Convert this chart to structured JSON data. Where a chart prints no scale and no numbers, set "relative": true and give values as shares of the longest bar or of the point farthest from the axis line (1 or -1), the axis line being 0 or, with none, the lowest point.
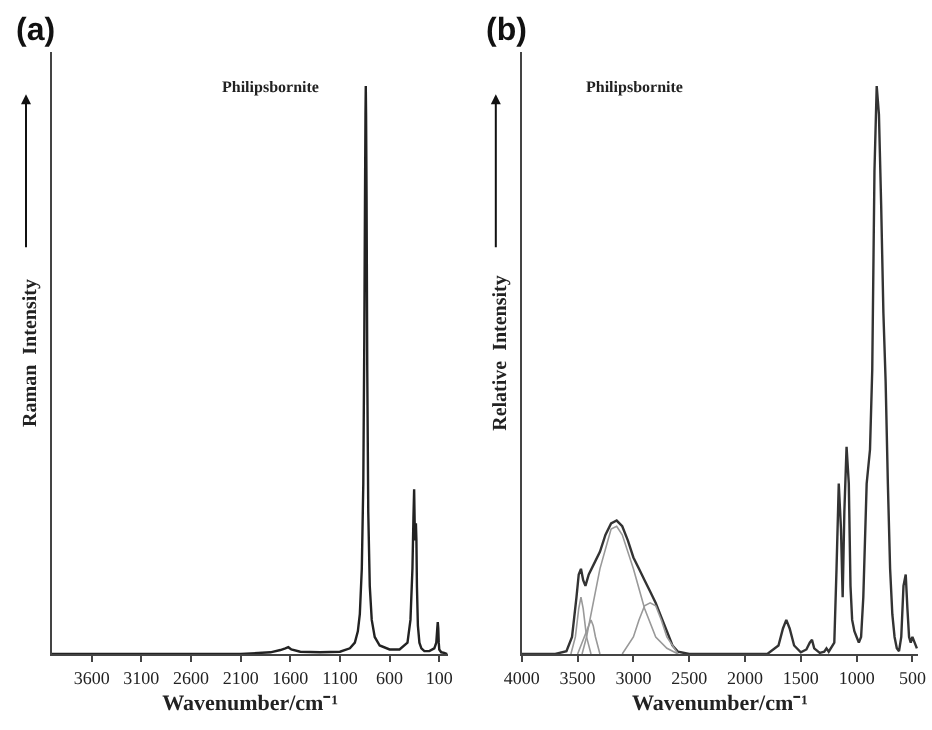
{
  "chart_data": [
    {
      "type": "line",
      "relative": true,
      "title": "Philipsbornite",
      "annotations": [
        "(a)"
      ],
      "xlabel": "Wavenumber/cm⁻¹",
      "ylabel": "Raman  Intensity",
      "xlim": [
        4000,
        10
      ],
      "xticks": [
        3600,
        3100,
        2600,
        2100,
        1600,
        1100,
        600,
        100
      ],
      "marker": "none",
      "line_style": "solid",
      "series": [
        {
          "color": "#222222",
          "x": [
            4000,
            3600,
            3000,
            2500,
            2100,
            1800,
            1700,
            1650,
            1620,
            1590,
            1500,
            1300,
            1100,
            1000,
            950,
            920,
            900,
            880,
            865,
            855,
            848,
            843,
            840,
            837,
            832,
            825,
            815,
            800,
            780,
            750,
            700,
            600,
            500,
            420,
            390,
            370,
            360,
            353,
            345,
            335,
            330,
            325,
            315,
            300,
            280,
            250,
            200,
            150,
            130,
            120,
            115,
            110,
            105,
            100,
            80,
            50,
            20
          ],
          "values": [
            0,
            0,
            0,
            0,
            0,
            0.003,
            0.007,
            0.01,
            0.012,
            0.008,
            0.004,
            0.003,
            0.004,
            0.01,
            0.02,
            0.04,
            0.07,
            0.15,
            0.3,
            0.55,
            0.8,
            0.95,
            1.0,
            0.95,
            0.8,
            0.5,
            0.25,
            0.12,
            0.06,
            0.03,
            0.015,
            0.008,
            0.008,
            0.02,
            0.06,
            0.15,
            0.24,
            0.29,
            0.2,
            0.23,
            0.2,
            0.12,
            0.05,
            0.02,
            0.01,
            0.005,
            0.005,
            0.01,
            0.02,
            0.045,
            0.056,
            0.045,
            0.02,
            0.008,
            0.003,
            0.002,
            0
          ]
        }
      ]
    },
    {
      "type": "line",
      "relative": true,
      "title": "Philipsbornite",
      "annotations": [
        "(b)"
      ],
      "xlabel": "Wavenumber/cm⁻¹",
      "ylabel": "Relative  Intensity",
      "xlim": [
        4000,
        450
      ],
      "xticks": [
        4000,
        3500,
        3000,
        2500,
        2000,
        1500,
        1000,
        500
      ],
      "marker": "none",
      "line_style": "solid",
      "series": [
        {
          "color": "#333333",
          "x": [
            4000,
            3700,
            3600,
            3550,
            3510,
            3490,
            3470,
            3450,
            3430,
            3400,
            3350,
            3300,
            3250,
            3200,
            3150,
            3100,
            3050,
            3000,
            2950,
            2900,
            2850,
            2800,
            2750,
            2700,
            2650,
            2600,
            2500,
            2200,
            1800,
            1700,
            1660,
            1630,
            1600,
            1560,
            1500,
            1450,
            1420,
            1400,
            1380,
            1330,
            1290,
            1270,
            1250,
            1200,
            1180,
            1160,
            1140,
            1125,
            1110,
            1090,
            1070,
            1055,
            1040,
            1020,
            1000,
            980,
            960,
            940,
            910,
            880,
            860,
            840,
            820,
            800,
            780,
            760,
            740,
            720,
            700,
            680,
            660,
            640,
            620,
            600,
            580,
            560,
            545,
            530,
            515,
            500,
            480,
            460
          ],
          "values": [
            0,
            0,
            0.005,
            0.03,
            0.1,
            0.14,
            0.15,
            0.13,
            0.12,
            0.14,
            0.16,
            0.18,
            0.21,
            0.23,
            0.235,
            0.225,
            0.2,
            0.17,
            0.15,
            0.13,
            0.11,
            0.09,
            0.065,
            0.04,
            0.015,
            0.004,
            0,
            0,
            0,
            0.015,
            0.045,
            0.06,
            0.045,
            0.015,
            0.003,
            0.008,
            0.02,
            0.025,
            0.01,
            0.002,
            0.004,
            0.01,
            0.004,
            0.02,
            0.15,
            0.3,
            0.22,
            0.1,
            0.25,
            0.365,
            0.3,
            0.12,
            0.06,
            0.04,
            0.03,
            0.02,
            0.03,
            0.1,
            0.3,
            0.36,
            0.5,
            0.85,
            1.0,
            0.95,
            0.79,
            0.6,
            0.48,
            0.3,
            0.15,
            0.07,
            0.03,
            0.01,
            0.005,
            0.03,
            0.12,
            0.14,
            0.08,
            0.03,
            0.02,
            0.03,
            0.02,
            0.01
          ]
        },
        {
          "color": "#999999",
          "x": [
            3560,
            3520,
            3490,
            3470,
            3450,
            3420,
            3380
          ],
          "values": [
            0,
            0.03,
            0.08,
            0.1,
            0.08,
            0.03,
            0
          ]
        },
        {
          "color": "#999999",
          "x": [
            3460,
            3420,
            3400,
            3380,
            3360,
            3340,
            3300
          ],
          "values": [
            0,
            0.03,
            0.05,
            0.06,
            0.05,
            0.03,
            0
          ]
        },
        {
          "color": "#999999",
          "x": [
            3500,
            3400,
            3300,
            3200,
            3150,
            3100,
            3000,
            2900,
            2800,
            2700,
            2600
          ],
          "values": [
            0,
            0.05,
            0.15,
            0.22,
            0.225,
            0.21,
            0.15,
            0.08,
            0.03,
            0.01,
            0
          ]
        },
        {
          "color": "#999999",
          "x": [
            3100,
            3000,
            2950,
            2900,
            2850,
            2800,
            2750,
            2700,
            2600
          ],
          "values": [
            0,
            0.03,
            0.06,
            0.085,
            0.09,
            0.085,
            0.06,
            0.03,
            0
          ]
        }
      ]
    }
  ]
}
